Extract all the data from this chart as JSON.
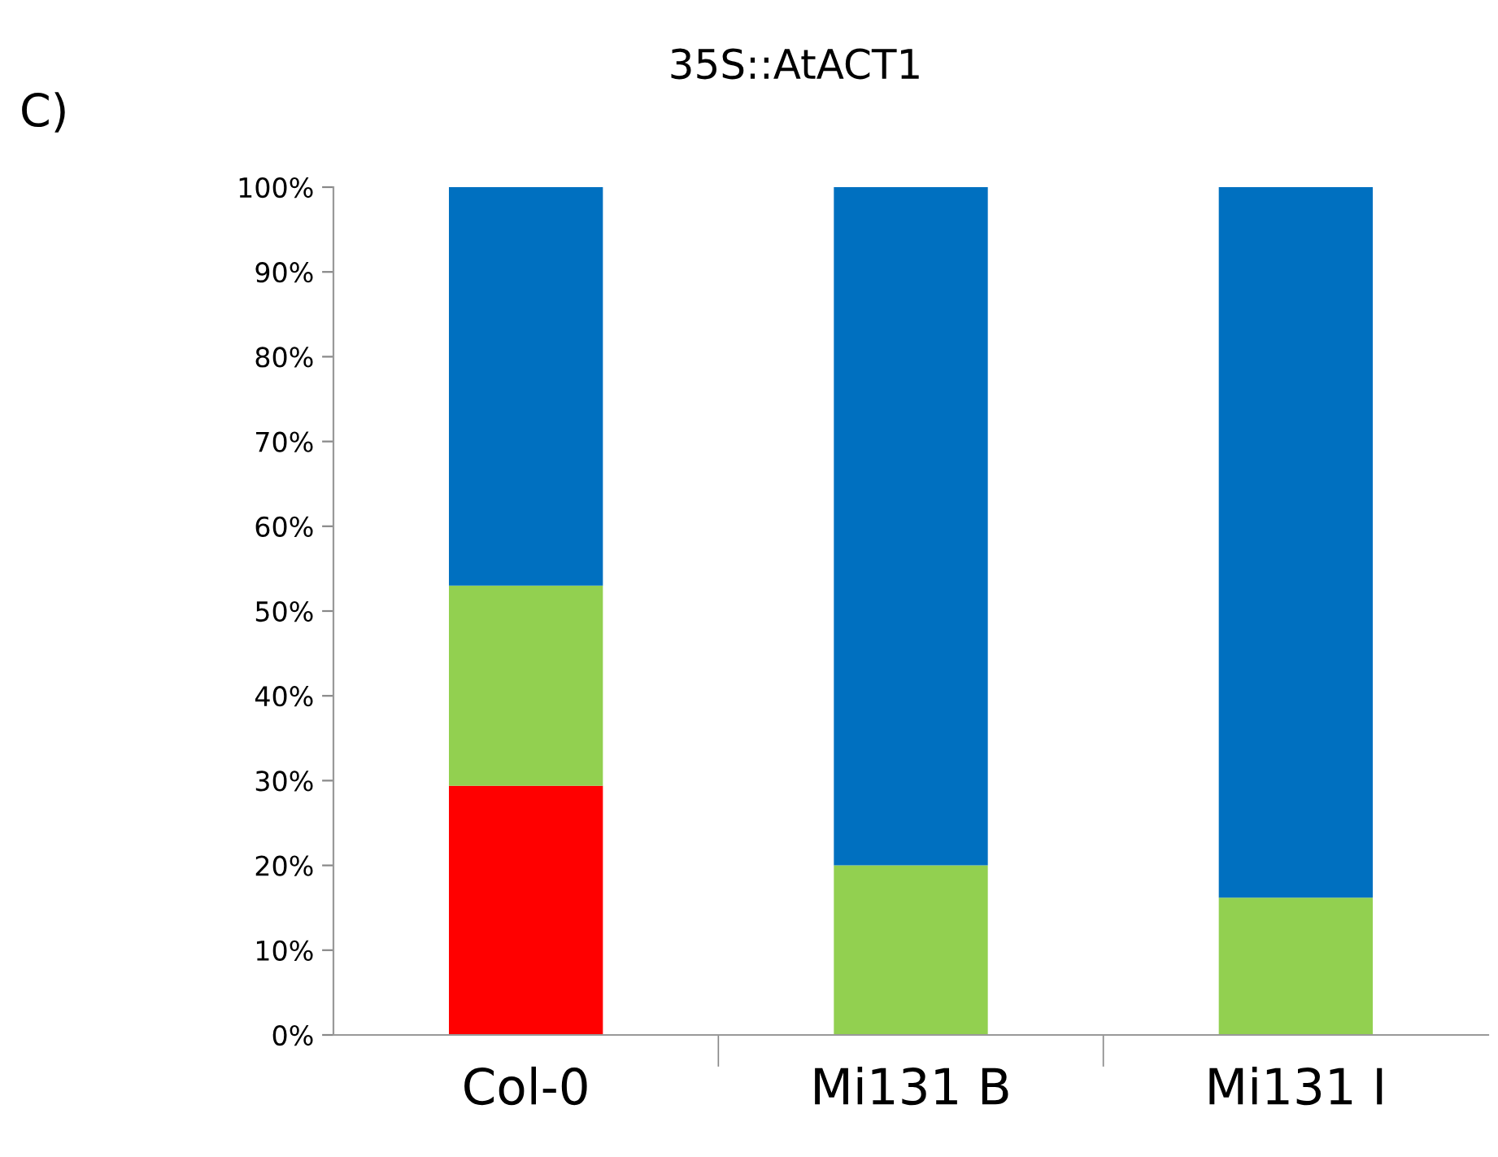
{
  "chart_data": {
    "type": "bar",
    "title": "35S::AtACT1",
    "annotations": [
      "C)"
    ],
    "categories": [
      "Col-0",
      "Mi131 B",
      "Mi131 I"
    ],
    "stacked": true,
    "series": [
      {
        "color": "#ff0000",
        "values": [
          29.4,
          0,
          0
        ]
      },
      {
        "color": "#92d050",
        "values": [
          23.6,
          20,
          16.2
        ]
      },
      {
        "color": "#0070c0",
        "values": [
          47,
          80,
          83.8
        ]
      }
    ],
    "ylim": [
      0,
      100
    ],
    "yticks": [
      {
        "value": 0,
        "label": "0%"
      },
      {
        "value": 10,
        "label": "10%"
      },
      {
        "value": 20,
        "label": "20%"
      },
      {
        "value": 30,
        "label": "30%"
      },
      {
        "value": 40,
        "label": "40%"
      },
      {
        "value": 50,
        "label": "50%"
      },
      {
        "value": 60,
        "label": "60%"
      },
      {
        "value": 70,
        "label": "70%"
      },
      {
        "value": 80,
        "label": "80%"
      },
      {
        "value": 90,
        "label": "90%"
      },
      {
        "value": 100,
        "label": "100%"
      }
    ],
    "grid": false
  }
}
